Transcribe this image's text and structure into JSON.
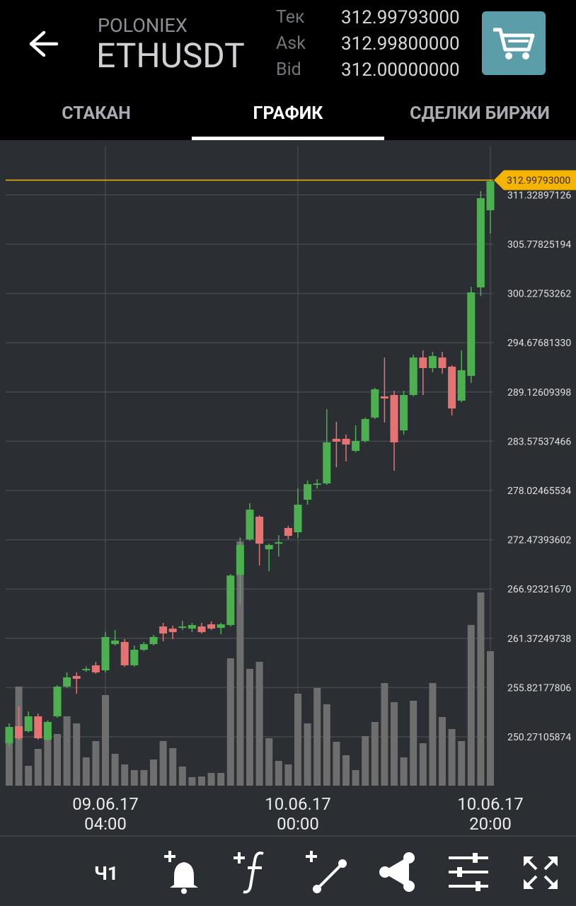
{
  "header": {
    "exchange": "POLONIEX",
    "pair": "ETHUSDT",
    "quotes": [
      {
        "label": "Тек",
        "value": "312.99793000"
      },
      {
        "label": "Ask",
        "value": "312.99800000"
      },
      {
        "label": "Bid",
        "value": "312.00000000"
      }
    ]
  },
  "tabs": [
    "СТАКАН",
    "ГРАФИК",
    "СДЕЛКИ БИРЖИ"
  ],
  "toolbar": {
    "interval": "Ч1"
  },
  "chart_data": {
    "type": "candlestick",
    "categories": [
      null,
      null,
      null,
      null,
      null,
      null,
      null,
      null,
      null,
      null,
      "09.06.17 04:00",
      null,
      null,
      null,
      null,
      null,
      null,
      null,
      null,
      null,
      null,
      null,
      null,
      null,
      null,
      null,
      null,
      null,
      null,
      null,
      "10.06.17 00:00",
      null,
      null,
      null,
      null,
      null,
      null,
      null,
      null,
      null,
      null,
      null,
      null,
      null,
      null,
      null,
      null,
      null,
      null,
      null,
      "10.06.17 20:00"
    ],
    "open": [
      249.55,
      251.47,
      250.91,
      252.58,
      249.95,
      252.58,
      255.93,
      257.13,
      257.85,
      258.33,
      257.77,
      260.72,
      260.96,
      258.33,
      260.08,
      260.72,
      262.71,
      262.47,
      262.55,
      262.47,
      262.71,
      262.95,
      262.55,
      262.87,
      268.53,
      272.52,
      275.07,
      271.4,
      272.04,
      273.8,
      273.32,
      276.99,
      278.66,
      278.82,
      283.85,
      283.85,
      282.49,
      283.61,
      286.24,
      288.63,
      288.79,
      284.8,
      288.79,
      293.01,
      291.82,
      293.01,
      291.98,
      288.15,
      290.94,
      300.91,
      309.6
    ],
    "high": [
      251.79,
      253.7,
      253.14,
      252.9,
      252.11,
      256.09,
      257.53,
      257.53,
      258.2,
      258.72,
      262.07,
      262.31,
      261.28,
      260.56,
      260.96,
      261.76,
      263.11,
      262.79,
      263.35,
      263.11,
      263.11,
      263.27,
      263.11,
      268.61,
      272.75,
      276.59,
      275.23,
      272.04,
      273.0,
      274.04,
      278.26,
      279.14,
      279.3,
      287.2,
      285.77,
      284.33,
      285.37,
      286.24,
      289.59,
      293.01,
      289.27,
      289.27,
      293.33,
      293.81,
      293.65,
      293.65,
      292.14,
      293.81,
      300.98,
      311.76,
      313.0
    ],
    "low": [
      249.15,
      249.95,
      250.75,
      249.95,
      249.79,
      252.42,
      255.77,
      255.13,
      257.6,
      257.37,
      257.53,
      260.56,
      258.17,
      258.17,
      259.92,
      260.56,
      261.04,
      261.28,
      262.31,
      262.07,
      261.91,
      262.31,
      261.83,
      262.71,
      265.22,
      272.36,
      269.57,
      268.93,
      270.6,
      272.52,
      272.68,
      276.43,
      278.26,
      278.66,
      280.65,
      281.29,
      282.33,
      283.45,
      286.08,
      285.69,
      280.25,
      284.33,
      288.63,
      288.79,
      291.34,
      291.18,
      286.48,
      287.99,
      290.14,
      299.95,
      306.97
    ],
    "close": [
      251.39,
      250.11,
      252.58,
      250.11,
      251.95,
      255.93,
      256.97,
      256.81,
      257.93,
      257.53,
      261.52,
      261.12,
      258.33,
      260.08,
      260.72,
      261.52,
      261.91,
      262.07,
      262.71,
      262.87,
      262.07,
      262.47,
      262.95,
      268.45,
      271.88,
      275.87,
      272.04,
      271.88,
      272.2,
      272.92,
      276.43,
      278.74,
      278.82,
      283.45,
      283.53,
      283.21,
      283.61,
      286.08,
      289.43,
      288.39,
      283.45,
      288.79,
      293.01,
      291.82,
      293.17,
      291.82,
      287.27,
      291.58,
      300.35,
      310.96,
      312.87
    ],
    "volume": [
      60,
      140,
      28,
      52,
      75,
      73,
      98,
      88,
      40,
      63,
      128,
      45,
      30,
      22,
      22,
      37,
      63,
      53,
      27,
      12,
      13,
      18,
      18,
      180,
      345,
      165,
      175,
      67,
      35,
      30,
      130,
      88,
      138,
      115,
      62,
      43,
      22,
      70,
      90,
      145,
      118,
      40,
      120,
      60,
      145,
      97,
      80,
      63,
      227,
      273,
      190
    ],
    "vlim": [
      0,
      910
    ],
    "up_color": "#4caf50",
    "down_color": "#e57373",
    "volume_color": "#6e6e6e",
    "ylim": [
      244.77,
      317.34
    ],
    "yticks": [
      250.27105874,
      255.82177806,
      261.37249738,
      {
        "value": 266.9232167,
        "label": "266.92321670"
      },
      272.47393602,
      278.02465534,
      283.57537466,
      289.12609398,
      {
        "value": 294.6768133,
        "label": "294.67681330"
      },
      300.22753262,
      305.77825194,
      311.32897126
    ],
    "current_price": {
      "value": 312.99793,
      "label": "312.99793000"
    },
    "price_color": "#f5b400",
    "grid": true
  }
}
